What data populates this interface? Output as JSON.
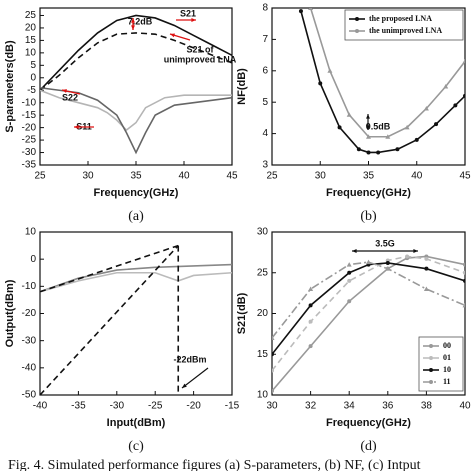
{
  "chart_data": [
    {
      "type": "line",
      "panel": "(a)",
      "x_label": "Frequency(GHz)",
      "y_label": "S-parameters(dB)",
      "xlim": [
        25,
        45
      ],
      "xticks": [
        25,
        30,
        35,
        40,
        45
      ],
      "ylim": [
        -35,
        28
      ],
      "yticks": [
        -35,
        -30,
        -25,
        -20,
        -15,
        -10,
        -5,
        0,
        5,
        10,
        15,
        20,
        25
      ],
      "annotations": [
        "7.2dB",
        "S21",
        "S21 of",
        "unimproved LNA",
        "S22",
        "S11"
      ],
      "series": [
        {
          "color": "#111111",
          "style": "solid",
          "x": [
            25,
            27,
            29,
            31,
            33,
            35,
            37,
            39,
            41,
            43,
            45
          ],
          "values": [
            -5,
            3,
            11,
            18,
            23,
            25,
            24,
            21,
            17,
            13,
            9
          ]
        },
        {
          "color": "#111111",
          "style": "dashed",
          "x": [
            25,
            27,
            29,
            31,
            33,
            35,
            37,
            39,
            41,
            43,
            45
          ],
          "values": [
            -5,
            1,
            8,
            14,
            17.5,
            18,
            17.5,
            15,
            12,
            9,
            6
          ]
        },
        {
          "color": "#b5b5b5",
          "style": "solid",
          "x": [
            25,
            27,
            29,
            31,
            32,
            33,
            34,
            35,
            36,
            38,
            40,
            42,
            45
          ],
          "values": [
            -5,
            -8,
            -10,
            -12,
            -14,
            -17,
            -21,
            -18,
            -12,
            -8,
            -7,
            -7,
            -7
          ]
        },
        {
          "color": "#666666",
          "style": "solid",
          "x": [
            25,
            27,
            29,
            31,
            33,
            34,
            35,
            36,
            37,
            39,
            41,
            43,
            45
          ],
          "values": [
            -4,
            -5,
            -6,
            -9,
            -15,
            -22,
            -30,
            -22,
            -15,
            -11,
            -10,
            -9,
            -8
          ]
        }
      ]
    },
    {
      "type": "line",
      "panel": "(b)",
      "x_label": "Frequency(GHz)",
      "y_label": "NF(dB)",
      "xlim": [
        25,
        45
      ],
      "xticks": [
        25,
        30,
        35,
        40,
        45
      ],
      "ylim": [
        3,
        8
      ],
      "yticks": [
        3,
        4,
        5,
        6,
        7,
        8
      ],
      "annotations": [
        "0.5dB"
      ],
      "legend": "top-right",
      "series": [
        {
          "name": "the proposed LNA",
          "color": "#111111",
          "style": "solid",
          "marker": "circle",
          "x": [
            28,
            30,
            32,
            34,
            35,
            36,
            38,
            40,
            42,
            44,
            45
          ],
          "values": [
            7.9,
            5.6,
            4.2,
            3.5,
            3.4,
            3.4,
            3.5,
            3.8,
            4.3,
            4.9,
            5.2
          ]
        },
        {
          "name": "the unimproved LNA",
          "color": "#999999",
          "style": "solid",
          "marker": "triangle",
          "x": [
            29,
            31,
            33,
            35,
            37,
            39,
            41,
            43,
            45
          ],
          "values": [
            8,
            6,
            4.6,
            3.9,
            3.9,
            4.2,
            4.8,
            5.5,
            6.3
          ]
        }
      ]
    },
    {
      "type": "line",
      "panel": "(c)",
      "x_label": "Input(dBm)",
      "y_label": "Output(dBm)",
      "xlim": [
        -40,
        -15
      ],
      "xticks": [
        -40,
        -35,
        -30,
        -25,
        -20,
        -15
      ],
      "ylim": [
        -50,
        10
      ],
      "yticks": [
        -50,
        -40,
        -30,
        -20,
        -10,
        0,
        10
      ],
      "annotations": [
        "-22dBm"
      ],
      "series": [
        {
          "color": "#888888",
          "style": "solid",
          "x": [
            -40,
            -35,
            -30,
            -25,
            -20,
            -15
          ],
          "values": [
            -12,
            -7,
            -4,
            -3,
            -2.5,
            -2
          ]
        },
        {
          "color": "#bbbbbb",
          "style": "solid",
          "x": [
            -40,
            -35,
            -30,
            -25,
            -22,
            -20,
            -15
          ],
          "values": [
            -12,
            -8,
            -5,
            -5,
            -8,
            -6,
            -5
          ]
        },
        {
          "color": "#111111",
          "style": "dashed",
          "x": [
            -40,
            -22
          ],
          "values": [
            -12,
            5
          ]
        },
        {
          "color": "#111111",
          "style": "dashed",
          "x": [
            -40,
            -22
          ],
          "values": [
            -50,
            5
          ]
        },
        {
          "color": "#111111",
          "style": "dashed",
          "x": [
            -22,
            -22
          ],
          "values": [
            5,
            -50
          ]
        }
      ]
    },
    {
      "type": "line",
      "panel": "(d)",
      "x_label": "Frequency(GHz)",
      "y_label": "S21(dB)",
      "xlim": [
        30,
        40
      ],
      "xticks": [
        30,
        32,
        34,
        36,
        38,
        40
      ],
      "ylim": [
        10,
        30
      ],
      "yticks": [
        10,
        15,
        20,
        25,
        30
      ],
      "annotations": [
        "3.5G"
      ],
      "legend": "bottom-right",
      "series": [
        {
          "name": "00",
          "color": "#999999",
          "style": "solid",
          "marker": "circle",
          "x": [
            30,
            32,
            34,
            36,
            37,
            38,
            40
          ],
          "values": [
            10.5,
            16,
            21.5,
            25.5,
            26.8,
            27,
            26
          ]
        },
        {
          "name": "01",
          "color": "#bbbbbb",
          "style": "dashed",
          "marker": "circle",
          "x": [
            30,
            32,
            34,
            36,
            37,
            38,
            40
          ],
          "values": [
            13,
            19,
            24,
            26.5,
            27,
            26.7,
            25
          ]
        },
        {
          "name": "10",
          "color": "#111111",
          "style": "solid",
          "marker": "circle",
          "x": [
            30,
            32,
            34,
            35,
            36,
            38,
            40
          ],
          "values": [
            15,
            21,
            25,
            26,
            26.2,
            25.5,
            24
          ]
        },
        {
          "name": "11",
          "color": "#999999",
          "style": "dashdot",
          "marker": "triangle",
          "x": [
            30,
            32,
            34,
            35,
            36,
            38,
            40
          ],
          "values": [
            17,
            23,
            26,
            26.3,
            25.5,
            23,
            21
          ]
        }
      ]
    }
  ],
  "figure_caption": "Fig. 4.   Simulated performance figures (a) S-parameters, (b) NF, (c) Intput"
}
